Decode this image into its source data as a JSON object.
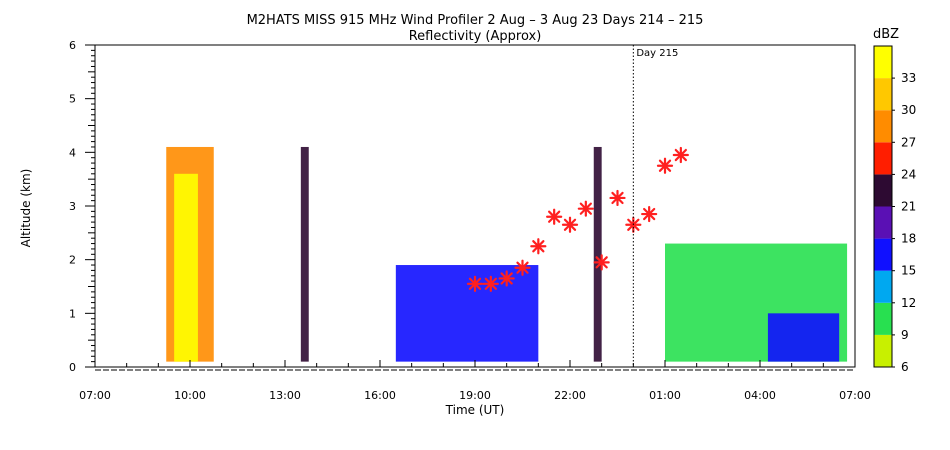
{
  "chart_data": {
    "type": "heatmap",
    "title": "M2HATS MISS 915 MHz Wind Profiler    2 Aug –   3 Aug 23 Days 214 – 215",
    "subtitle": "Reflectivity (Approx)",
    "xlabel": "Time (UT)",
    "ylabel": "Altitude (km)",
    "x_tick_labels": [
      "07:00",
      "10:00",
      "13:00",
      "16:00",
      "19:00",
      "22:00",
      "01:00",
      "04:00",
      "07:00"
    ],
    "x_tick_hours": [
      7,
      10,
      13,
      16,
      19,
      22,
      25,
      28,
      31
    ],
    "xlim_hours": [
      7,
      31
    ],
    "y_tick_labels": [
      "0",
      "1",
      "2",
      "3",
      "4",
      "5",
      "6"
    ],
    "ylim": [
      0,
      6
    ],
    "grid": false,
    "day_marker": {
      "label": "Day 215",
      "x_hour": 24
    },
    "colorbar": {
      "title": "dBZ",
      "tick_labels": [
        "6",
        "9",
        "12",
        "15",
        "18",
        "21",
        "24",
        "27",
        "30",
        "33"
      ],
      "levels": [
        6,
        9,
        12,
        15,
        18,
        21,
        24,
        27,
        30,
        33,
        36
      ],
      "colors": [
        "#c8f000",
        "#28e050",
        "#00a8f0",
        "#1010ff",
        "#5a10b4",
        "#2d0a32",
        "#ff1e00",
        "#ff8c00",
        "#ffc800",
        "#ffff00"
      ]
    },
    "markers_label": "",
    "markers_color": "#ff2020",
    "markers": [
      {
        "x_hour": 19.0,
        "y": 1.55
      },
      {
        "x_hour": 19.5,
        "y": 1.55
      },
      {
        "x_hour": 20.0,
        "y": 1.65
      },
      {
        "x_hour": 20.5,
        "y": 1.85
      },
      {
        "x_hour": 21.0,
        "y": 2.25
      },
      {
        "x_hour": 21.5,
        "y": 2.8
      },
      {
        "x_hour": 22.0,
        "y": 2.65
      },
      {
        "x_hour": 22.5,
        "y": 2.95
      },
      {
        "x_hour": 23.0,
        "y": 1.95
      },
      {
        "x_hour": 23.5,
        "y": 3.15
      },
      {
        "x_hour": 24.0,
        "y": 2.65
      },
      {
        "x_hour": 24.5,
        "y": 2.85
      },
      {
        "x_hour": 25.0,
        "y": 3.75
      },
      {
        "x_hour": 25.5,
        "y": 3.95
      }
    ],
    "reflectivity_features": [
      {
        "x0": 9.25,
        "x1": 10.75,
        "y0": 0.1,
        "y1": 4.1,
        "dbz": 27
      },
      {
        "x0": 9.5,
        "x1": 10.25,
        "y0": 0.1,
        "y1": 3.6,
        "dbz": 33
      },
      {
        "x0": 13.5,
        "x1": 13.75,
        "y0": 0.1,
        "y1": 4.1,
        "dbz": 22
      },
      {
        "x0": 22.75,
        "x1": 23.0,
        "y0": 0.1,
        "y1": 4.1,
        "dbz": 22
      },
      {
        "x0": 16.5,
        "x1": 21.0,
        "y0": 0.1,
        "y1": 1.9,
        "dbz": 15
      },
      {
        "x0": 25.0,
        "x1": 30.75,
        "y0": 0.1,
        "y1": 2.3,
        "dbz": 10
      },
      {
        "x0": 28.25,
        "x1": 30.5,
        "y0": 0.1,
        "y1": 1.0,
        "dbz": 16
      }
    ]
  }
}
